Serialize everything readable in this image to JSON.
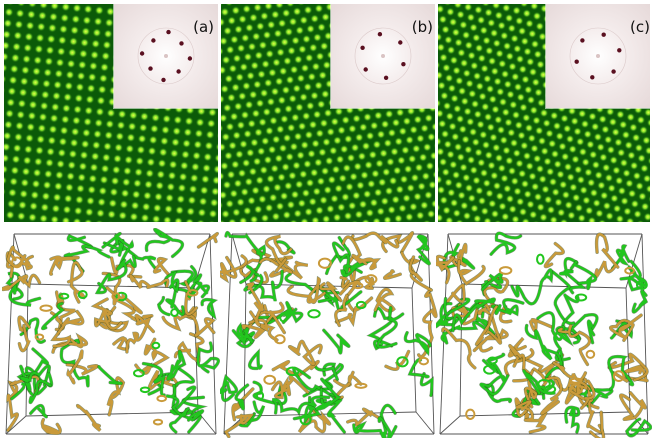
{
  "figure": {
    "panels": [
      {
        "label": "(a)",
        "symmetry": "square",
        "spacing": 11.2,
        "angle": 6
      },
      {
        "label": "(b)",
        "symmetry": "hexagonal",
        "spacing": 11.0,
        "angle": -8
      },
      {
        "label": "(c)",
        "symmetry": "hexagonal",
        "spacing": 10.6,
        "angle": 15
      }
    ],
    "colors": {
      "lattice_background": "#0b5a08",
      "lattice_spot": "#e6ff4a",
      "inset_spot": "#5a1020",
      "vortex_green": "#22c61e",
      "vortex_gold": "#c99a3a",
      "box_edge": "#555555"
    }
  }
}
